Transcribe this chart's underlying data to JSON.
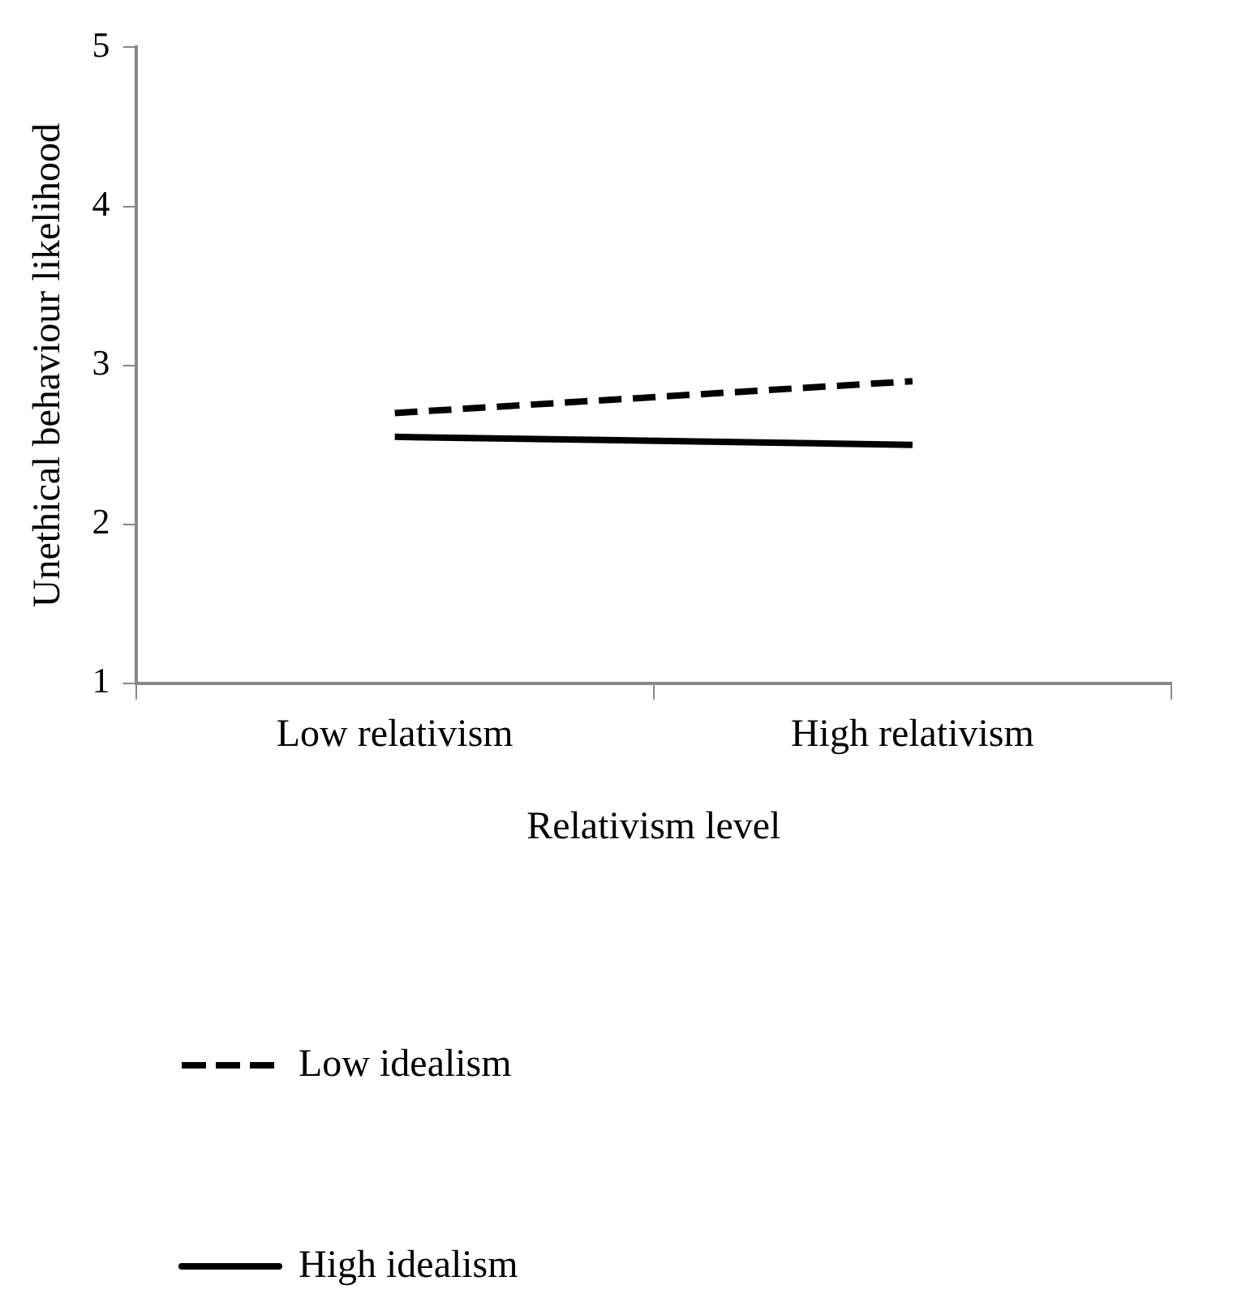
{
  "chart_data": {
    "type": "line",
    "xlabel": "Relativism level",
    "ylabel": "Unethical behaviour likelihood",
    "categories": [
      "Low relativism",
      "High relativism"
    ],
    "series": [
      {
        "name": "Low idealism",
        "color": "#000000",
        "values": [
          2.7,
          2.9
        ],
        "line_style": "dashed"
      },
      {
        "name": "High idealism",
        "color": "#000000",
        "values": [
          2.55,
          2.5
        ],
        "line_style": "solid"
      }
    ],
    "ylim": [
      1,
      5
    ],
    "yticks": [
      1,
      2,
      3,
      4,
      5
    ],
    "grid": false,
    "legend": "bottom",
    "marker": "none"
  }
}
